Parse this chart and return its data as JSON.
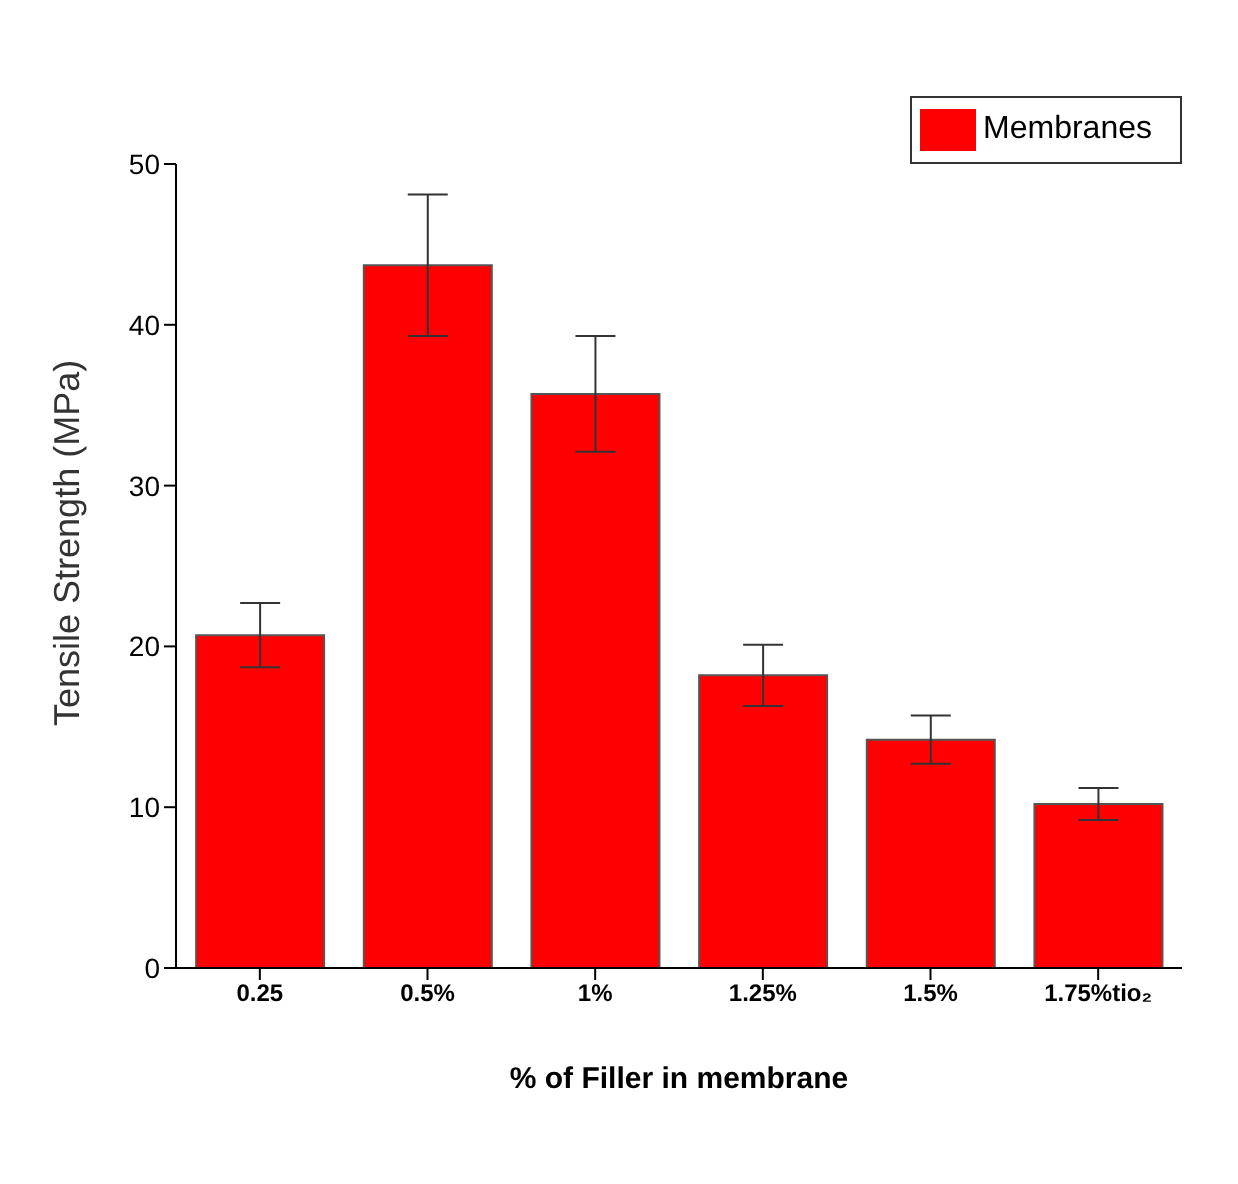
{
  "chart_data": {
    "type": "bar",
    "xlabel": "% of Filler in membrane",
    "ylabel": "Tensile Strength (MPa)",
    "categories": [
      "0.25",
      "0.5%",
      "1%",
      "1.25%",
      "1.5%",
      "1.75%tio₂"
    ],
    "series": [
      {
        "name": "Membranes",
        "color": "#ff0000",
        "values": [
          20.7,
          43.7,
          35.7,
          18.2,
          14.2,
          10.2
        ],
        "errors": [
          2,
          4.4,
          3.6,
          1.9,
          1.5,
          1
        ]
      }
    ],
    "ylim": [
      0,
      50
    ],
    "yticks": [
      0,
      10,
      20,
      30,
      40,
      50
    ],
    "grid": false,
    "legend": "top right"
  }
}
